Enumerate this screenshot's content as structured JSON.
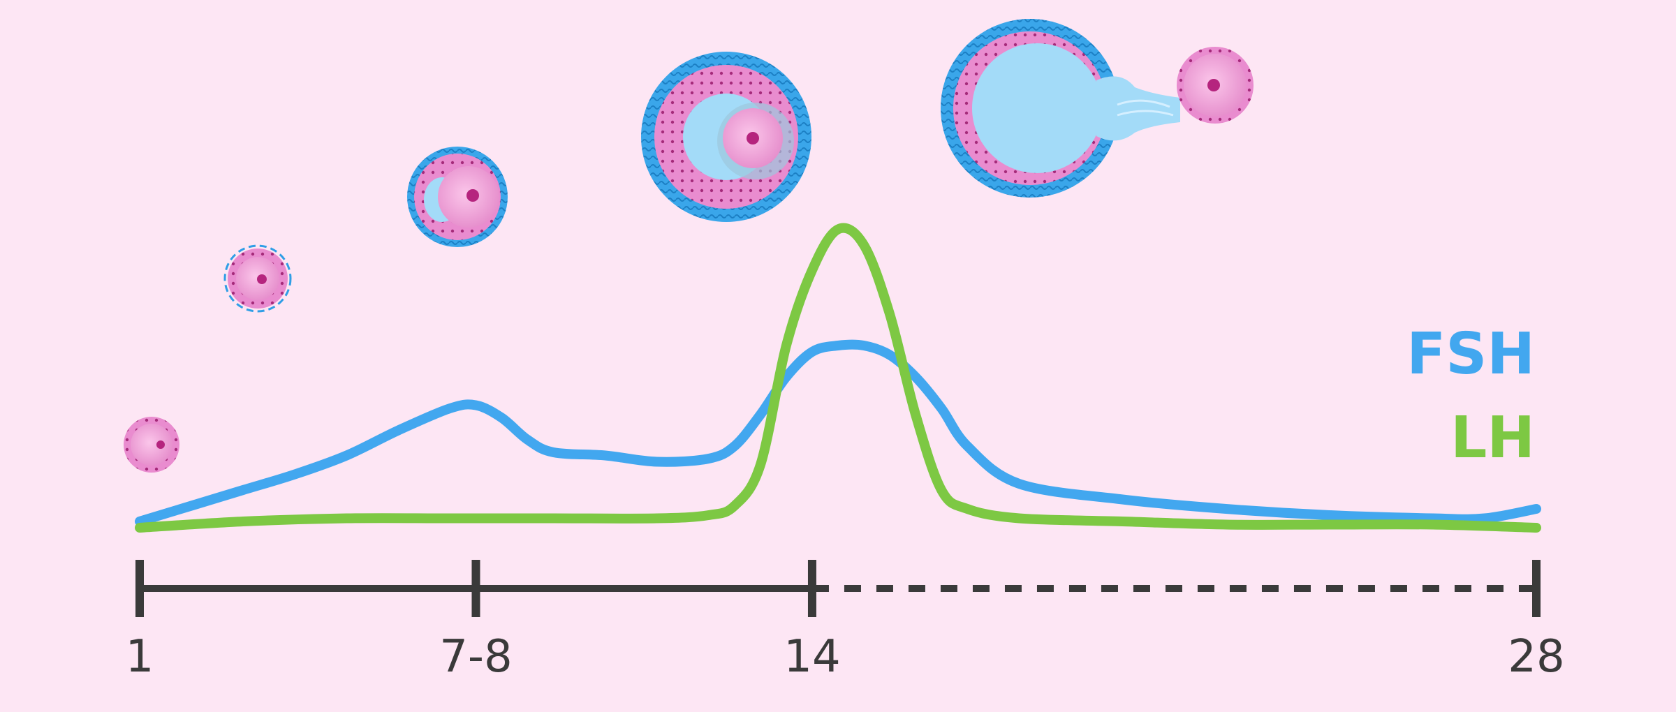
{
  "colors": {
    "background": "#fde6f4",
    "fsh": "#42a7ef",
    "lh": "#7dc843",
    "axis": "#3a3a3a",
    "follicle_pink": "#e98ccf",
    "follicle_blue": "#2f9ee6",
    "antrum": "#a3dbf8",
    "nucleus": "#b5247e"
  },
  "chart_data": {
    "type": "line",
    "xlim": [
      1,
      28
    ],
    "ylim": [
      0,
      100
    ],
    "x_ticks": [
      1,
      7.5,
      14,
      28
    ],
    "x_tick_labels": [
      "1",
      "7-8",
      "14",
      "28"
    ],
    "series": [
      {
        "name": "FSH",
        "color": "#42a7ef",
        "x": [
          1,
          2,
          3,
          4,
          5,
          6,
          7,
          7.5,
          8,
          8.5,
          9,
          10,
          11,
          12,
          12.5,
          13,
          13.5,
          14,
          14.5,
          15,
          15.5,
          16,
          16.5,
          17,
          18,
          20,
          22,
          24,
          26,
          27,
          28
        ],
        "y": [
          4,
          9,
          14,
          19,
          25,
          33,
          40,
          41,
          37,
          30,
          26,
          25,
          23,
          24,
          28,
          38,
          50,
          58,
          60,
          60,
          57,
          50,
          40,
          28,
          16,
          11,
          8,
          6,
          5,
          5,
          8
        ]
      },
      {
        "name": "LH",
        "color": "#7dc843",
        "x": [
          1,
          3,
          5,
          7,
          9,
          11,
          12,
          12.5,
          13,
          13.5,
          14,
          14.5,
          15,
          15.5,
          16,
          16.5,
          17,
          18,
          20,
          22,
          24,
          26,
          28
        ],
        "y": [
          2,
          4,
          5,
          5,
          5,
          5,
          6,
          9,
          22,
          60,
          84,
          97,
          92,
          70,
          38,
          14,
          8,
          5,
          4,
          3,
          3,
          3,
          2
        ]
      }
    ],
    "segments": [
      {
        "from": 1,
        "to": 7.5,
        "style": "solid"
      },
      {
        "from": 7.5,
        "to": 14,
        "style": "solid"
      },
      {
        "from": 14,
        "to": 28,
        "style": "dashed"
      }
    ],
    "legend_position": "right",
    "grid": false
  },
  "follicle_stages": [
    {
      "stage": "primordial",
      "day": 1
    },
    {
      "stage": "primary",
      "day": 3
    },
    {
      "stage": "secondary",
      "day": 5
    },
    {
      "stage": "early-antral",
      "day": 7.5
    },
    {
      "stage": "ovulating",
      "day": 14
    }
  ]
}
